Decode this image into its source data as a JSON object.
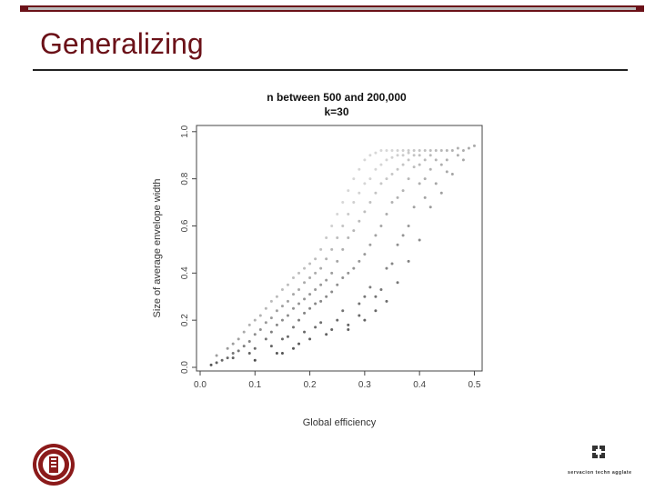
{
  "slide": {
    "title": "Generalizing",
    "brand_color": "#6b1118"
  },
  "footer": {
    "left_logo": "university-seal-icon",
    "right_logo_text": "servacion techn agglate"
  },
  "chart_data": {
    "type": "scatter",
    "title": [
      "n between 500 and 200,000",
      "k=30"
    ],
    "xlabel": "Global efficiency",
    "ylabel": "Size of average envelope width",
    "xlim": [
      0,
      0.5
    ],
    "ylim": [
      0,
      1.0
    ],
    "xticks": [
      "0.0",
      "0.1",
      "0.2",
      "0.3",
      "0.4",
      "0.5"
    ],
    "yticks": [
      "0.0",
      "0.2",
      "0.4",
      "0.6",
      "0.8",
      "1.0"
    ],
    "grid": false,
    "legend": "none",
    "points": [
      [
        0.02,
        0.01
      ],
      [
        0.03,
        0.02
      ],
      [
        0.03,
        0.05
      ],
      [
        0.04,
        0.03
      ],
      [
        0.05,
        0.08
      ],
      [
        0.05,
        0.04
      ],
      [
        0.06,
        0.06
      ],
      [
        0.06,
        0.1
      ],
      [
        0.07,
        0.12
      ],
      [
        0.07,
        0.07
      ],
      [
        0.08,
        0.15
      ],
      [
        0.08,
        0.09
      ],
      [
        0.09,
        0.11
      ],
      [
        0.09,
        0.18
      ],
      [
        0.1,
        0.14
      ],
      [
        0.1,
        0.2
      ],
      [
        0.1,
        0.08
      ],
      [
        0.11,
        0.22
      ],
      [
        0.11,
        0.16
      ],
      [
        0.12,
        0.25
      ],
      [
        0.12,
        0.19
      ],
      [
        0.12,
        0.12
      ],
      [
        0.13,
        0.28
      ],
      [
        0.13,
        0.21
      ],
      [
        0.13,
        0.15
      ],
      [
        0.14,
        0.3
      ],
      [
        0.14,
        0.24
      ],
      [
        0.14,
        0.18
      ],
      [
        0.15,
        0.33
      ],
      [
        0.15,
        0.26
      ],
      [
        0.15,
        0.2
      ],
      [
        0.15,
        0.12
      ],
      [
        0.16,
        0.35
      ],
      [
        0.16,
        0.28
      ],
      [
        0.16,
        0.22
      ],
      [
        0.17,
        0.38
      ],
      [
        0.17,
        0.31
      ],
      [
        0.17,
        0.25
      ],
      [
        0.17,
        0.17
      ],
      [
        0.18,
        0.4
      ],
      [
        0.18,
        0.33
      ],
      [
        0.18,
        0.27
      ],
      [
        0.18,
        0.2
      ],
      [
        0.19,
        0.42
      ],
      [
        0.19,
        0.36
      ],
      [
        0.19,
        0.29
      ],
      [
        0.19,
        0.23
      ],
      [
        0.2,
        0.44
      ],
      [
        0.2,
        0.38
      ],
      [
        0.2,
        0.31
      ],
      [
        0.2,
        0.25
      ],
      [
        0.21,
        0.46
      ],
      [
        0.21,
        0.4
      ],
      [
        0.21,
        0.33
      ],
      [
        0.21,
        0.27
      ],
      [
        0.22,
        0.5
      ],
      [
        0.22,
        0.42
      ],
      [
        0.22,
        0.35
      ],
      [
        0.22,
        0.28
      ],
      [
        0.23,
        0.55
      ],
      [
        0.23,
        0.46
      ],
      [
        0.23,
        0.37
      ],
      [
        0.23,
        0.3
      ],
      [
        0.24,
        0.6
      ],
      [
        0.24,
        0.5
      ],
      [
        0.24,
        0.4
      ],
      [
        0.24,
        0.32
      ],
      [
        0.25,
        0.65
      ],
      [
        0.25,
        0.55
      ],
      [
        0.25,
        0.45
      ],
      [
        0.25,
        0.35
      ],
      [
        0.26,
        0.7
      ],
      [
        0.26,
        0.6
      ],
      [
        0.26,
        0.5
      ],
      [
        0.26,
        0.38
      ],
      [
        0.27,
        0.75
      ],
      [
        0.27,
        0.65
      ],
      [
        0.27,
        0.55
      ],
      [
        0.27,
        0.4
      ],
      [
        0.28,
        0.8
      ],
      [
        0.28,
        0.7
      ],
      [
        0.28,
        0.58
      ],
      [
        0.28,
        0.42
      ],
      [
        0.29,
        0.84
      ],
      [
        0.29,
        0.74
      ],
      [
        0.29,
        0.62
      ],
      [
        0.29,
        0.45
      ],
      [
        0.3,
        0.88
      ],
      [
        0.3,
        0.78
      ],
      [
        0.3,
        0.66
      ],
      [
        0.3,
        0.48
      ],
      [
        0.3,
        0.3
      ],
      [
        0.31,
        0.9
      ],
      [
        0.31,
        0.8
      ],
      [
        0.31,
        0.7
      ],
      [
        0.31,
        0.52
      ],
      [
        0.32,
        0.91
      ],
      [
        0.32,
        0.84
      ],
      [
        0.32,
        0.74
      ],
      [
        0.32,
        0.56
      ],
      [
        0.32,
        0.3
      ],
      [
        0.33,
        0.92
      ],
      [
        0.33,
        0.86
      ],
      [
        0.33,
        0.78
      ],
      [
        0.33,
        0.6
      ],
      [
        0.34,
        0.92
      ],
      [
        0.34,
        0.88
      ],
      [
        0.34,
        0.8
      ],
      [
        0.34,
        0.65
      ],
      [
        0.35,
        0.92
      ],
      [
        0.35,
        0.89
      ],
      [
        0.35,
        0.82
      ],
      [
        0.35,
        0.7
      ],
      [
        0.35,
        0.44
      ],
      [
        0.36,
        0.92
      ],
      [
        0.36,
        0.9
      ],
      [
        0.36,
        0.84
      ],
      [
        0.36,
        0.72
      ],
      [
        0.37,
        0.92
      ],
      [
        0.37,
        0.9
      ],
      [
        0.37,
        0.86
      ],
      [
        0.37,
        0.75
      ],
      [
        0.38,
        0.92
      ],
      [
        0.38,
        0.91
      ],
      [
        0.38,
        0.88
      ],
      [
        0.38,
        0.8
      ],
      [
        0.38,
        0.6
      ],
      [
        0.39,
        0.92
      ],
      [
        0.39,
        0.9
      ],
      [
        0.39,
        0.85
      ],
      [
        0.4,
        0.92
      ],
      [
        0.4,
        0.9
      ],
      [
        0.4,
        0.86
      ],
      [
        0.4,
        0.78
      ],
      [
        0.41,
        0.92
      ],
      [
        0.41,
        0.88
      ],
      [
        0.41,
        0.8
      ],
      [
        0.42,
        0.92
      ],
      [
        0.42,
        0.9
      ],
      [
        0.42,
        0.84
      ],
      [
        0.43,
        0.92
      ],
      [
        0.43,
        0.88
      ],
      [
        0.44,
        0.92
      ],
      [
        0.44,
        0.86
      ],
      [
        0.45,
        0.92
      ],
      [
        0.45,
        0.88
      ],
      [
        0.46,
        0.92
      ],
      [
        0.47,
        0.93
      ],
      [
        0.47,
        0.9
      ],
      [
        0.48,
        0.92
      ],
      [
        0.49,
        0.93
      ],
      [
        0.5,
        0.94
      ],
      [
        0.06,
        0.04
      ],
      [
        0.09,
        0.06
      ],
      [
        0.1,
        0.03
      ],
      [
        0.13,
        0.09
      ],
      [
        0.15,
        0.06
      ],
      [
        0.16,
        0.13
      ],
      [
        0.18,
        0.1
      ],
      [
        0.19,
        0.15
      ],
      [
        0.21,
        0.17
      ],
      [
        0.22,
        0.19
      ],
      [
        0.23,
        0.14
      ],
      [
        0.25,
        0.2
      ],
      [
        0.26,
        0.24
      ],
      [
        0.27,
        0.16
      ],
      [
        0.29,
        0.27
      ],
      [
        0.3,
        0.2
      ],
      [
        0.31,
        0.34
      ],
      [
        0.33,
        0.33
      ],
      [
        0.34,
        0.42
      ],
      [
        0.36,
        0.52
      ],
      [
        0.37,
        0.56
      ],
      [
        0.39,
        0.68
      ],
      [
        0.41,
        0.72
      ],
      [
        0.43,
        0.78
      ],
      [
        0.44,
        0.74
      ],
      [
        0.46,
        0.82
      ],
      [
        0.48,
        0.88
      ],
      [
        0.45,
        0.83
      ],
      [
        0.42,
        0.68
      ],
      [
        0.4,
        0.54
      ],
      [
        0.38,
        0.45
      ],
      [
        0.36,
        0.36
      ],
      [
        0.34,
        0.28
      ],
      [
        0.32,
        0.24
      ],
      [
        0.29,
        0.22
      ],
      [
        0.27,
        0.18
      ],
      [
        0.24,
        0.16
      ],
      [
        0.2,
        0.12
      ],
      [
        0.17,
        0.08
      ],
      [
        0.14,
        0.06
      ]
    ]
  }
}
